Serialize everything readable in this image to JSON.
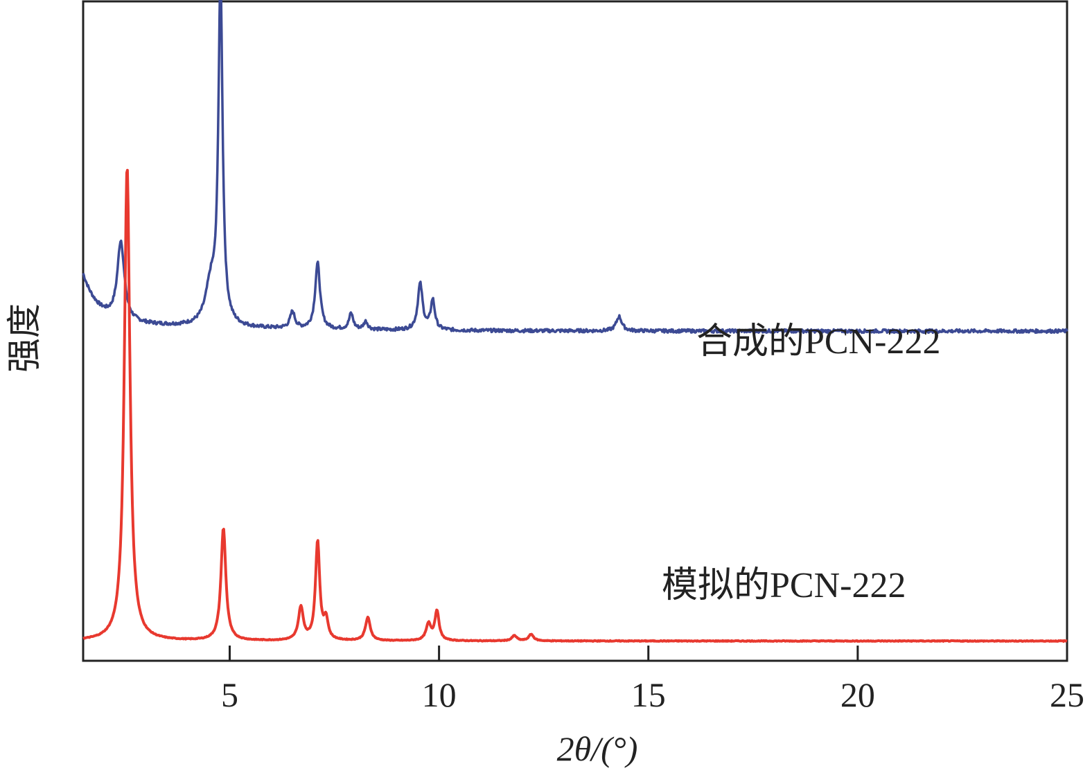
{
  "chart_data": {
    "type": "line",
    "title": "",
    "xlabel": "2θ/(°)",
    "ylabel": "强度",
    "xlim": [
      1.5,
      25
    ],
    "ylim": [
      0,
      100
    ],
    "xticks": [
      5,
      10,
      15,
      20,
      25
    ],
    "yticks_shown": false,
    "grid": false,
    "legend": "none",
    "series": [
      {
        "name": "合成的PCN-222",
        "color": "#3c4a94",
        "baseline": 50,
        "peaks": [
          {
            "x": 2.4,
            "h": 12,
            "w": 0.1
          },
          {
            "x": 4.55,
            "h": 6,
            "w": 0.15
          },
          {
            "x": 4.78,
            "h": 52,
            "w": 0.06
          },
          {
            "x": 6.5,
            "h": 2.5,
            "w": 0.07
          },
          {
            "x": 7.1,
            "h": 10,
            "w": 0.07
          },
          {
            "x": 7.9,
            "h": 2.4,
            "w": 0.06
          },
          {
            "x": 8.25,
            "h": 1.2,
            "w": 0.06
          },
          {
            "x": 9.55,
            "h": 7,
            "w": 0.07
          },
          {
            "x": 9.85,
            "h": 4.5,
            "w": 0.06
          },
          {
            "x": 14.3,
            "h": 2.2,
            "w": 0.08
          }
        ]
      },
      {
        "name": "模拟的PCN-222",
        "color": "#e8392f",
        "baseline": 3,
        "peaks": [
          {
            "x": 2.55,
            "h": 72,
            "w": 0.08
          },
          {
            "x": 4.85,
            "h": 17,
            "w": 0.07
          },
          {
            "x": 6.7,
            "h": 5,
            "w": 0.07
          },
          {
            "x": 7.1,
            "h": 15,
            "w": 0.06
          },
          {
            "x": 7.3,
            "h": 3,
            "w": 0.06
          },
          {
            "x": 8.3,
            "h": 3.5,
            "w": 0.07
          },
          {
            "x": 9.75,
            "h": 2.5,
            "w": 0.07
          },
          {
            "x": 9.95,
            "h": 4.5,
            "w": 0.06
          },
          {
            "x": 11.8,
            "h": 0.8,
            "w": 0.07
          },
          {
            "x": 12.2,
            "h": 1.0,
            "w": 0.07
          }
        ]
      }
    ]
  }
}
